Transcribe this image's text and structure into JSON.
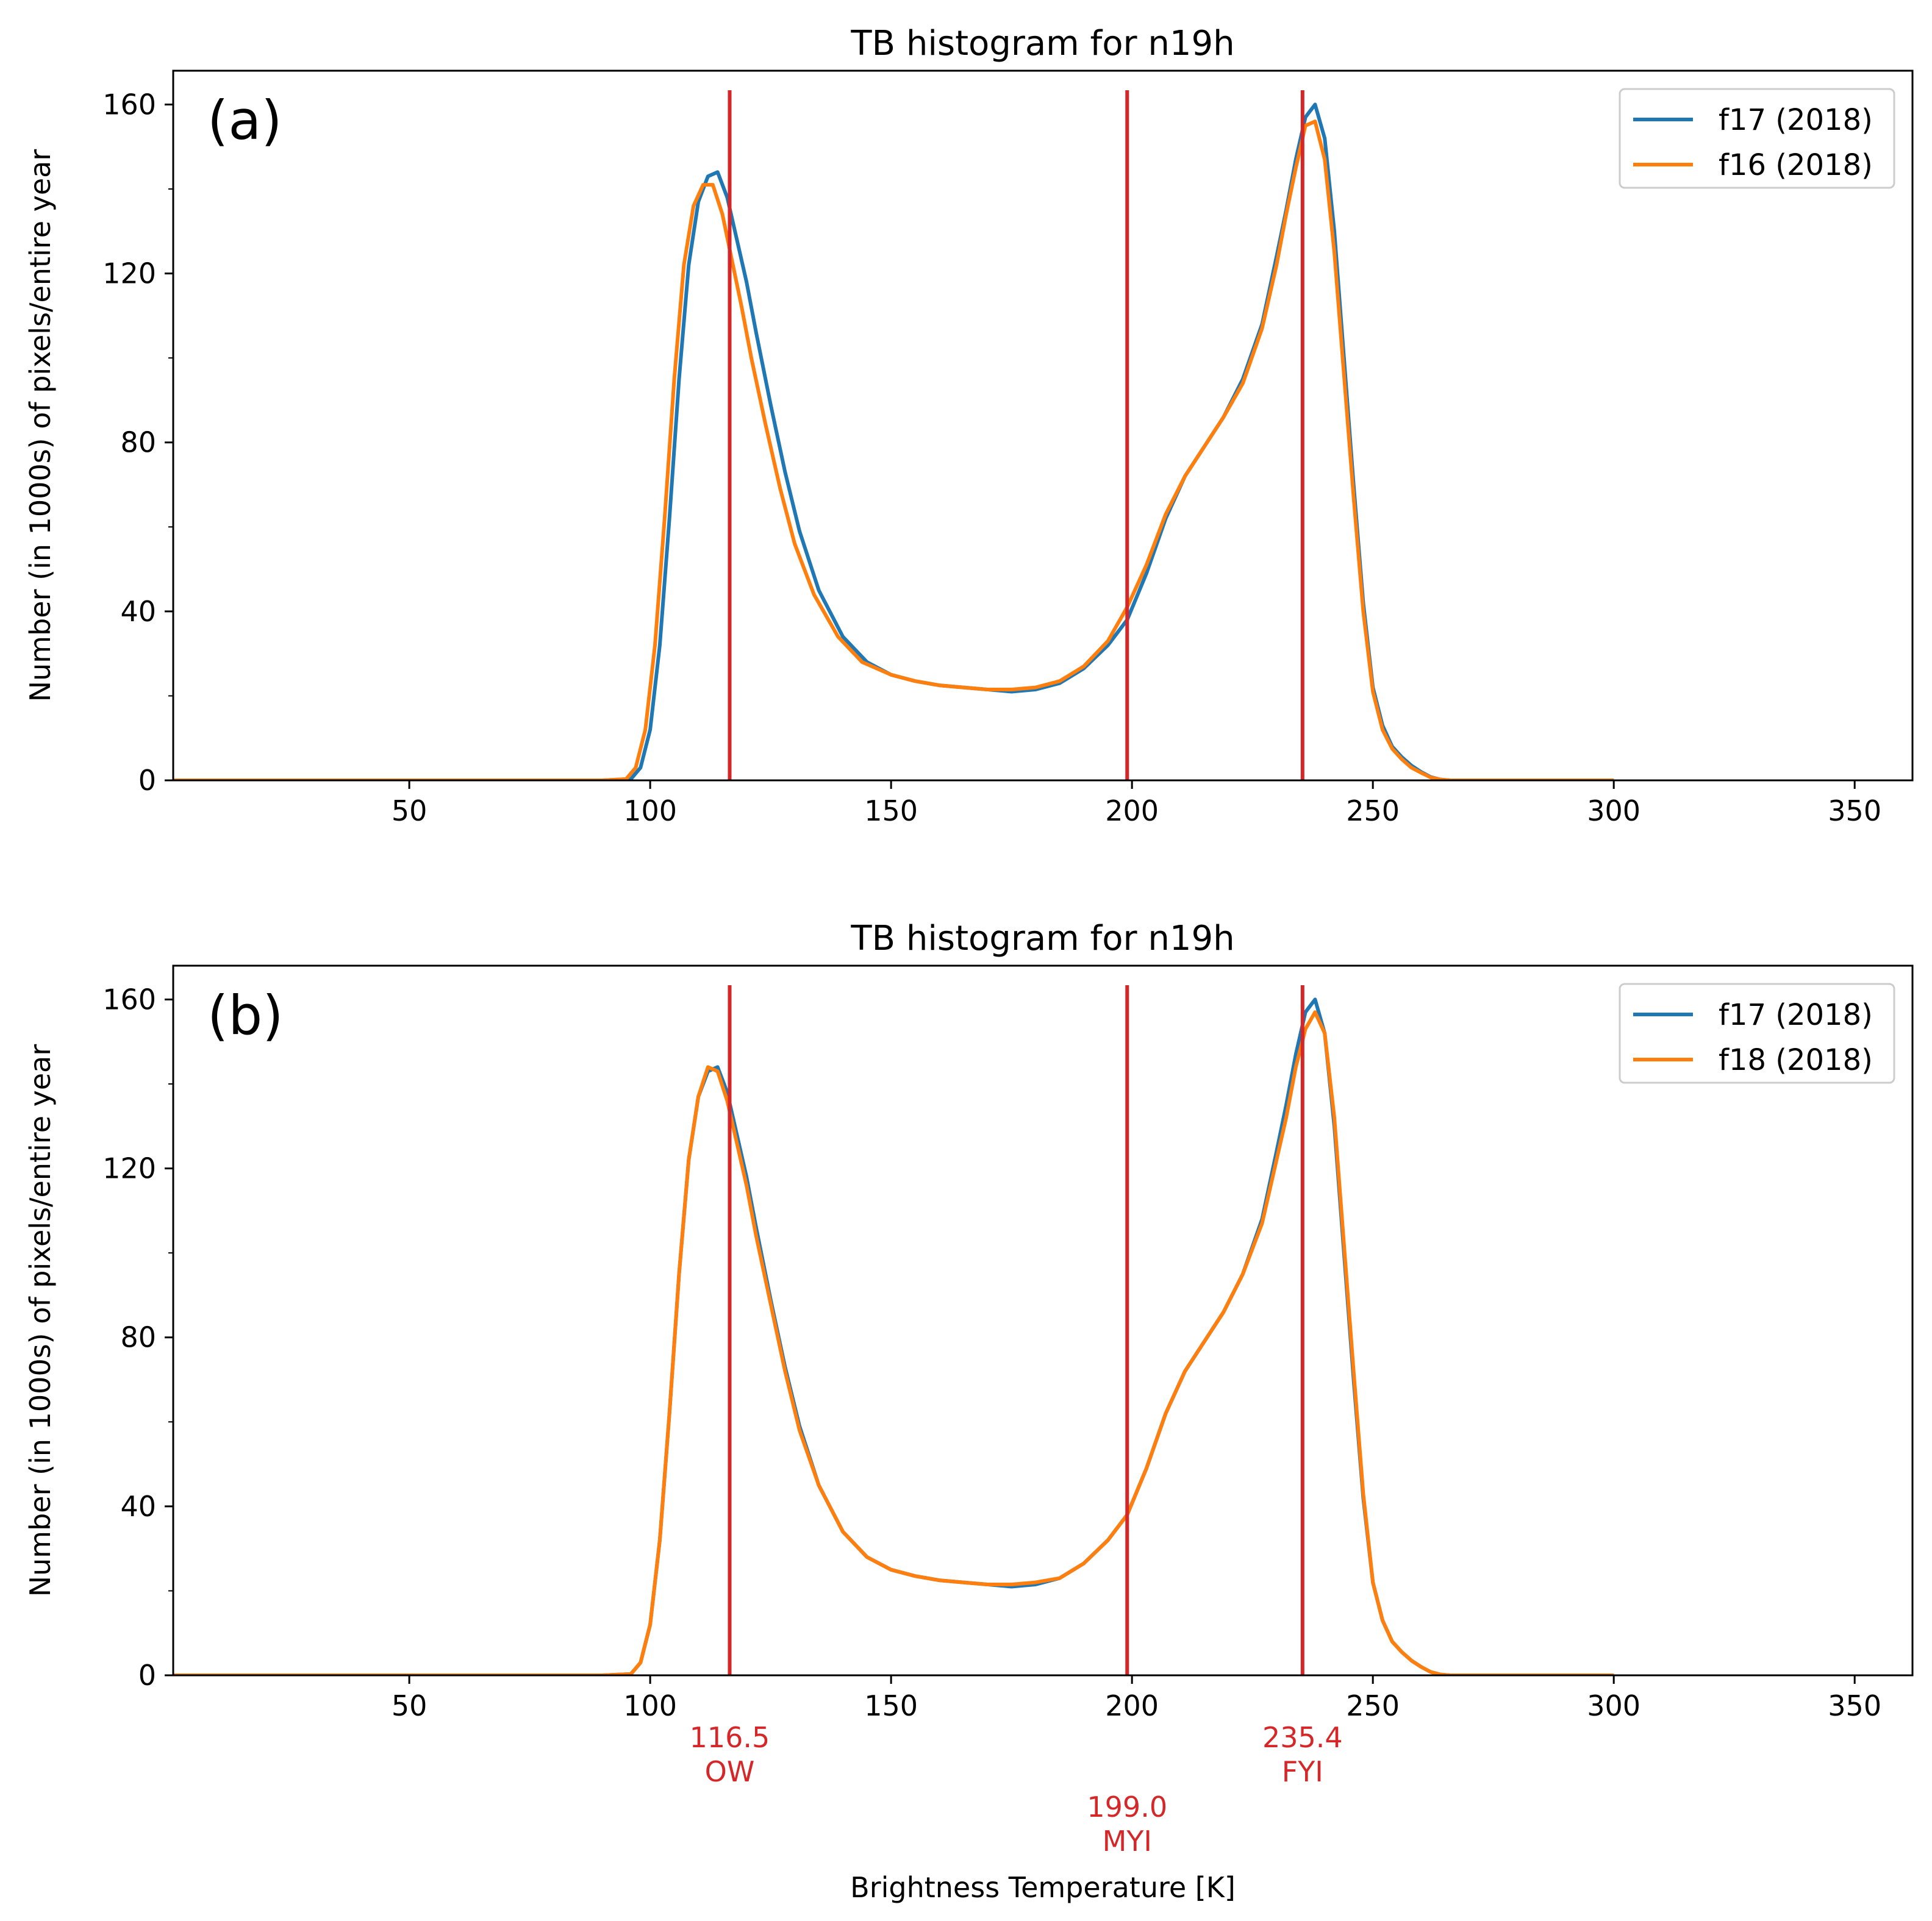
{
  "figure": {
    "xlabel": "Brightness Temperature [K]",
    "ylabel": "Number (in 1000s) of pixels/entire year"
  },
  "chart_data": [
    {
      "type": "line",
      "panel": "(a)",
      "title": "TB histogram for n19h",
      "xlabel": "",
      "ylabel": "Number (in 1000s) of pixels/entire year",
      "xlim": [
        1,
        362
      ],
      "ylim": [
        0,
        168
      ],
      "xticks": [
        50,
        100,
        150,
        200,
        250,
        300,
        350
      ],
      "yticks": [
        0,
        40,
        80,
        120,
        160
      ],
      "yminor_ticks": [
        20,
        60,
        100,
        140
      ],
      "legend_position": "top-right",
      "thresholds": [
        116.5,
        199.0,
        235.4
      ],
      "series": [
        {
          "name": "f17 (2018)",
          "color": "#1f77b4",
          "x": [
            1,
            50,
            90,
            96,
            98,
            100,
            102,
            104,
            106,
            108,
            110,
            112,
            114,
            116,
            118,
            120,
            122,
            125,
            128,
            131,
            135,
            140,
            145,
            150,
            155,
            160,
            165,
            170,
            175,
            180,
            185,
            190,
            195,
            199,
            203,
            207,
            211,
            215,
            219,
            223,
            227,
            230,
            232,
            234,
            236,
            238,
            240,
            242,
            244,
            246,
            248,
            250,
            252,
            254,
            256,
            258,
            260,
            262,
            264,
            266,
            270,
            280,
            300
          ],
          "values": [
            0,
            0,
            0,
            0.3,
            3,
            12,
            32,
            62,
            95,
            122,
            137,
            143,
            144,
            138,
            128,
            118,
            106,
            89,
            73,
            59,
            45,
            34,
            28,
            25,
            23.5,
            22.5,
            22,
            21.5,
            21,
            21.5,
            23,
            26.5,
            32,
            38,
            49,
            62,
            72,
            79,
            86,
            95,
            108,
            124,
            135,
            147,
            157,
            160,
            152,
            130,
            100,
            70,
            42,
            22,
            13,
            8,
            5.5,
            3.5,
            2,
            0.8,
            0.2,
            0,
            0,
            0,
            0
          ]
        },
        {
          "name": "f16 (2018)",
          "color": "#ff7f0e",
          "x": [
            1,
            50,
            90,
            95,
            97,
            99,
            101,
            103,
            105,
            107,
            109,
            111,
            113,
            115,
            117,
            119,
            121,
            124,
            127,
            130,
            134,
            139,
            144,
            150,
            155,
            160,
            165,
            170,
            175,
            180,
            185,
            190,
            195,
            199,
            203,
            207,
            211,
            215,
            219,
            223,
            227,
            230,
            232,
            234,
            236,
            238,
            240,
            242,
            244,
            246,
            248,
            250,
            252,
            254,
            256,
            258,
            260,
            262,
            264,
            266,
            270,
            280,
            300
          ],
          "values": [
            0,
            0,
            0,
            0.3,
            3,
            12,
            32,
            62,
            95,
            122,
            136,
            141,
            141,
            134,
            123,
            112,
            100,
            84,
            69,
            56,
            44,
            34,
            28,
            25,
            23.5,
            22.5,
            22,
            21.5,
            21.5,
            22,
            23.5,
            27,
            33,
            41,
            51,
            63,
            72,
            79,
            86,
            94,
            107,
            122,
            134,
            145,
            155,
            156,
            147,
            125,
            96,
            67,
            40,
            21,
            12,
            7.5,
            5,
            3,
            1.8,
            0.7,
            0.2,
            0,
            0,
            0,
            0
          ]
        }
      ]
    },
    {
      "type": "line",
      "panel": "(b)",
      "title": "TB histogram for n19h",
      "xlabel": "Brightness Temperature [K]",
      "ylabel": "Number (in 1000s) of pixels/entire year",
      "xlim": [
        1,
        362
      ],
      "ylim": [
        0,
        168
      ],
      "xticks": [
        50,
        100,
        150,
        200,
        250,
        300,
        350
      ],
      "yticks": [
        0,
        40,
        80,
        120,
        160
      ],
      "yminor_ticks": [
        20,
        60,
        100,
        140
      ],
      "legend_position": "top-right",
      "thresholds": [
        116.5,
        199.0,
        235.4
      ],
      "series": [
        {
          "name": "f17 (2018)",
          "color": "#1f77b4",
          "x": [
            1,
            50,
            90,
            96,
            98,
            100,
            102,
            104,
            106,
            108,
            110,
            112,
            114,
            116,
            118,
            120,
            122,
            125,
            128,
            131,
            135,
            140,
            145,
            150,
            155,
            160,
            165,
            170,
            175,
            180,
            185,
            190,
            195,
            199,
            203,
            207,
            211,
            215,
            219,
            223,
            227,
            230,
            232,
            234,
            236,
            238,
            240,
            242,
            244,
            246,
            248,
            250,
            252,
            254,
            256,
            258,
            260,
            262,
            264,
            266,
            270,
            280,
            300
          ],
          "values": [
            0,
            0,
            0,
            0.3,
            3,
            12,
            32,
            62,
            95,
            122,
            137,
            143,
            144,
            138,
            128,
            118,
            106,
            89,
            73,
            59,
            45,
            34,
            28,
            25,
            23.5,
            22.5,
            22,
            21.5,
            21,
            21.5,
            23,
            26.5,
            32,
            38,
            49,
            62,
            72,
            79,
            86,
            95,
            108,
            124,
            135,
            147,
            157,
            160,
            152,
            130,
            100,
            70,
            42,
            22,
            13,
            8,
            5.5,
            3.5,
            2,
            0.8,
            0.2,
            0,
            0,
            0,
            0
          ]
        },
        {
          "name": "f18 (2018)",
          "color": "#ff7f0e",
          "x": [
            1,
            50,
            90,
            96,
            98,
            100,
            102,
            104,
            106,
            108,
            110,
            112,
            114,
            116,
            118,
            120,
            122,
            125,
            128,
            131,
            135,
            140,
            145,
            150,
            155,
            160,
            165,
            170,
            175,
            180,
            185,
            190,
            195,
            199,
            203,
            207,
            211,
            215,
            219,
            223,
            227,
            230,
            232,
            234,
            236,
            238,
            240,
            242,
            244,
            246,
            248,
            250,
            252,
            254,
            256,
            258,
            260,
            262,
            264,
            266,
            270,
            280,
            300
          ],
          "values": [
            0,
            0,
            0,
            0.3,
            3,
            12,
            32,
            62,
            95,
            122,
            137,
            144,
            143,
            136,
            126,
            116,
            104,
            88,
            72,
            58,
            45,
            34,
            28,
            25,
            23.5,
            22.5,
            22,
            21.5,
            21.5,
            22,
            23,
            26.5,
            32,
            38,
            49,
            62,
            72,
            79,
            86,
            95,
            107,
            122,
            132,
            144,
            153,
            157,
            152,
            132,
            102,
            72,
            43,
            22,
            13,
            8,
            5.5,
            3.5,
            2,
            0.8,
            0.2,
            0,
            0,
            0,
            0
          ]
        }
      ],
      "threshold_labels": [
        {
          "value": "116.5",
          "name": "OW"
        },
        {
          "value": "199.0",
          "name": "MYI"
        },
        {
          "value": "235.4",
          "name": "FYI"
        }
      ]
    }
  ],
  "threshold_color": "#d62728"
}
